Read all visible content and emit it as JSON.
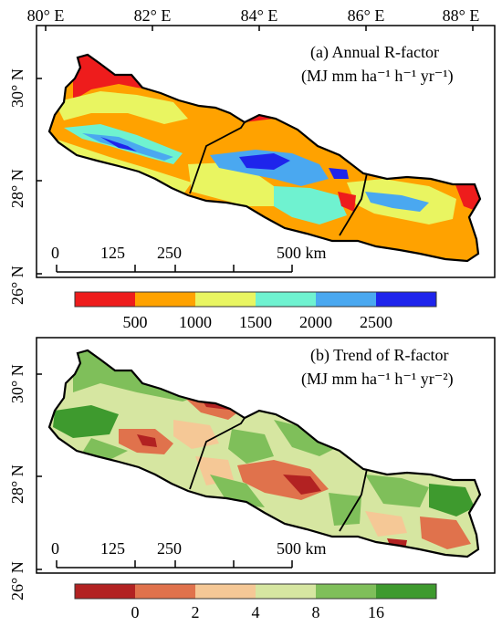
{
  "lon_labels": [
    "80° E",
    "82° E",
    "84° E",
    "86° E",
    "88° E"
  ],
  "lat_labels": [
    "30° N",
    "28° N",
    "26° N"
  ],
  "panel_a": {
    "title": "(a) Annual R-factor",
    "unit": "(MJ mm ha⁻¹ h⁻¹ yr⁻¹)",
    "legend_colors": [
      "#ee1c1c",
      "#ffa200",
      "#e9f561",
      "#6ff2d0",
      "#4aa8f0",
      "#1e24ec"
    ],
    "legend_ticks": [
      "500",
      "1000",
      "1500",
      "2000",
      "2500"
    ]
  },
  "panel_b": {
    "title": "(b) Trend of R-factor",
    "unit": "(MJ mm ha⁻¹ h⁻¹ yr⁻²)",
    "legend_colors": [
      "#b22222",
      "#e0724c",
      "#f5c896",
      "#d6e6a1",
      "#7fbf5a",
      "#3e9a2e"
    ],
    "legend_ticks": [
      "0",
      "2",
      "4",
      "8",
      "16"
    ]
  },
  "scalebar": {
    "ticks": [
      "0",
      "125",
      "250",
      "500 km"
    ]
  }
}
